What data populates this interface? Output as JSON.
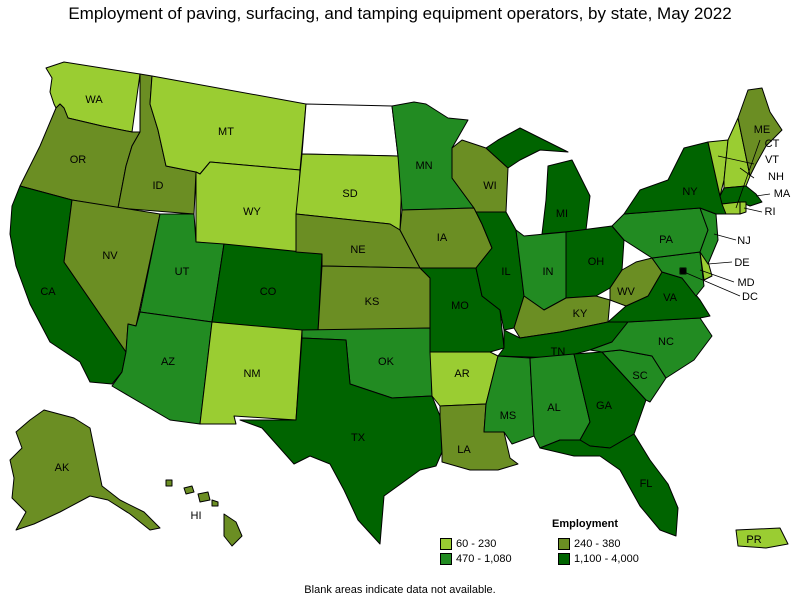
{
  "title": "Employment of paving, surfacing, and tamping equipment operators, by state, May 2022",
  "legend": {
    "title": "Employment",
    "items": [
      {
        "label": "60 - 230",
        "color": "#9acd32"
      },
      {
        "label": "240 - 380",
        "color": "#6b8e23"
      },
      {
        "label": "470 - 1,080",
        "color": "#228b22"
      },
      {
        "label": "1,100 - 4,000",
        "color": "#006400"
      }
    ]
  },
  "footnote": "Blank areas indicate data not available.",
  "colors": {
    "no_data": "#ffffff",
    "border": "#000000"
  },
  "chart_data": {
    "type": "choropleth",
    "bins": [
      "60 - 230",
      "240 - 380",
      "470 - 1,080",
      "1,100 - 4,000"
    ],
    "states": [
      {
        "abbr": "WA",
        "bin": 0
      },
      {
        "abbr": "OR",
        "bin": 1
      },
      {
        "abbr": "CA",
        "bin": 3
      },
      {
        "abbr": "ID",
        "bin": 1
      },
      {
        "abbr": "NV",
        "bin": 1
      },
      {
        "abbr": "MT",
        "bin": 0
      },
      {
        "abbr": "WY",
        "bin": 0
      },
      {
        "abbr": "UT",
        "bin": 2
      },
      {
        "abbr": "AZ",
        "bin": 2
      },
      {
        "abbr": "CO",
        "bin": 3
      },
      {
        "abbr": "NM",
        "bin": 0
      },
      {
        "abbr": "ND",
        "bin": null
      },
      {
        "abbr": "SD",
        "bin": 0
      },
      {
        "abbr": "NE",
        "bin": 1
      },
      {
        "abbr": "KS",
        "bin": 1
      },
      {
        "abbr": "OK",
        "bin": 2
      },
      {
        "abbr": "TX",
        "bin": 3
      },
      {
        "abbr": "MN",
        "bin": 2
      },
      {
        "abbr": "IA",
        "bin": 1
      },
      {
        "abbr": "MO",
        "bin": 3
      },
      {
        "abbr": "AR",
        "bin": 0
      },
      {
        "abbr": "LA",
        "bin": 1
      },
      {
        "abbr": "WI",
        "bin": 1
      },
      {
        "abbr": "IL",
        "bin": 3
      },
      {
        "abbr": "MI",
        "bin": 3
      },
      {
        "abbr": "IN",
        "bin": 2
      },
      {
        "abbr": "OH",
        "bin": 3
      },
      {
        "abbr": "KY",
        "bin": 1
      },
      {
        "abbr": "TN",
        "bin": 3
      },
      {
        "abbr": "MS",
        "bin": 2
      },
      {
        "abbr": "AL",
        "bin": 2
      },
      {
        "abbr": "GA",
        "bin": 3
      },
      {
        "abbr": "FL",
        "bin": 3
      },
      {
        "abbr": "SC",
        "bin": 2
      },
      {
        "abbr": "NC",
        "bin": 2
      },
      {
        "abbr": "VA",
        "bin": 3
      },
      {
        "abbr": "WV",
        "bin": 1
      },
      {
        "abbr": "PA",
        "bin": 2
      },
      {
        "abbr": "NY",
        "bin": 3
      },
      {
        "abbr": "VT",
        "bin": 0
      },
      {
        "abbr": "NH",
        "bin": 0
      },
      {
        "abbr": "ME",
        "bin": 1
      },
      {
        "abbr": "MA",
        "bin": 3
      },
      {
        "abbr": "RI",
        "bin": 0
      },
      {
        "abbr": "CT",
        "bin": 0
      },
      {
        "abbr": "NJ",
        "bin": 2
      },
      {
        "abbr": "DE",
        "bin": 0
      },
      {
        "abbr": "MD",
        "bin": 2
      },
      {
        "abbr": "DC",
        "bin": 3
      },
      {
        "abbr": "AK",
        "bin": 1
      },
      {
        "abbr": "HI",
        "bin": 1
      },
      {
        "abbr": "PR",
        "bin": 0
      }
    ]
  }
}
